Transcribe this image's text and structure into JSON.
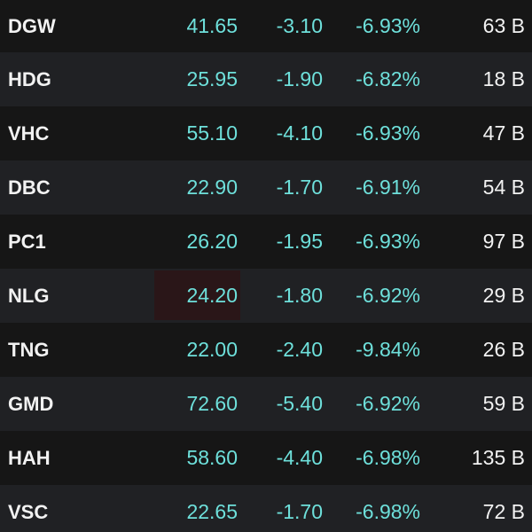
{
  "colors": {
    "background_dark": "#161616",
    "background_light": "#202124",
    "floor_price": "#6ee0db",
    "symbol_text": "#f2f2f2",
    "flash_highlight": "#2a1618"
  },
  "rows": [
    {
      "symbol": "DGW",
      "price": "41.65",
      "change": "-3.10",
      "percent": "-6.93%",
      "value": "63 B"
    },
    {
      "symbol": "HDG",
      "price": "25.95",
      "change": "-1.90",
      "percent": "-6.82%",
      "value": "18 B"
    },
    {
      "symbol": "VHC",
      "price": "55.10",
      "change": "-4.10",
      "percent": "-6.93%",
      "value": "47 B"
    },
    {
      "symbol": "DBC",
      "price": "22.90",
      "change": "-1.70",
      "percent": "-6.91%",
      "value": "54 B"
    },
    {
      "symbol": "PC1",
      "price": "26.20",
      "change": "-1.95",
      "percent": "-6.93%",
      "value": "97 B"
    },
    {
      "symbol": "NLG",
      "price": "24.20",
      "change": "-1.80",
      "percent": "-6.92%",
      "value": "29 B"
    },
    {
      "symbol": "TNG",
      "price": "22.00",
      "change": "-2.40",
      "percent": "-9.84%",
      "value": "26 B"
    },
    {
      "symbol": "GMD",
      "price": "72.60",
      "change": "-5.40",
      "percent": "-6.92%",
      "value": "59 B"
    },
    {
      "symbol": "HAH",
      "price": "58.60",
      "change": "-4.40",
      "percent": "-6.98%",
      "value": "135 B"
    },
    {
      "symbol": "VSC",
      "price": "22.65",
      "change": "-1.70",
      "percent": "-6.98%",
      "value": "72 B"
    }
  ]
}
